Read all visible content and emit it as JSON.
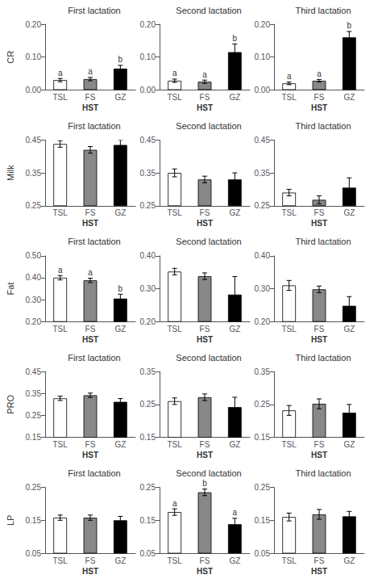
{
  "chart_data": [
    {
      "type": "bar",
      "title": "First lactation",
      "ylabel": "CR",
      "xlabel": "HST",
      "categories": [
        "TSL",
        "FS",
        "GZ"
      ],
      "values": [
        0.03,
        0.033,
        0.065
      ],
      "errors": [
        0.005,
        0.005,
        0.01
      ],
      "letters": [
        "a",
        "a",
        "b"
      ],
      "colors": [
        "white",
        "#888888",
        "black"
      ],
      "ylim": [
        0,
        0.2
      ],
      "yticks": [
        {
          "value": 0,
          "label": "0.00"
        },
        {
          "value": 0.1,
          "label": "0.10"
        },
        {
          "value": 0.2,
          "label": "0.20"
        }
      ],
      "grid": false
    },
    {
      "type": "bar",
      "title": "Second lactation",
      "xlabel": "HST",
      "categories": [
        "TSL",
        "FS",
        "GZ"
      ],
      "values": [
        0.028,
        0.025,
        0.115
      ],
      "errors": [
        0.005,
        0.005,
        0.025
      ],
      "letters": [
        "a",
        "a",
        "b"
      ],
      "colors": [
        "white",
        "#888888",
        "black"
      ],
      "ylim": [
        0,
        0.2
      ],
      "yticks": [
        {
          "value": 0,
          "label": "0.00"
        },
        {
          "value": 0.1,
          "label": "0.10"
        },
        {
          "value": 0.2,
          "label": "0.20"
        }
      ],
      "grid": false
    },
    {
      "type": "bar",
      "title": "Third lactation",
      "xlabel": "HST",
      "categories": [
        "TSL",
        "FS",
        "GZ"
      ],
      "values": [
        0.02,
        0.028,
        0.16
      ],
      "errors": [
        0.004,
        0.004,
        0.018
      ],
      "letters": [
        "a",
        "a",
        "b"
      ],
      "colors": [
        "white",
        "#888888",
        "black"
      ],
      "ylim": [
        0,
        0.2
      ],
      "yticks": [
        {
          "value": 0,
          "label": "0.00"
        },
        {
          "value": 0.1,
          "label": "0.10"
        },
        {
          "value": 0.2,
          "label": "0.20"
        }
      ],
      "grid": false
    },
    {
      "type": "bar",
      "title": "First lactation",
      "ylabel": "Milk",
      "xlabel": "HST",
      "categories": [
        "TSL",
        "FS",
        "GZ"
      ],
      "values": [
        0.438,
        0.42,
        0.435
      ],
      "errors": [
        0.01,
        0.01,
        0.015
      ],
      "colors": [
        "white",
        "#888888",
        "black"
      ],
      "ylim": [
        0.25,
        0.45
      ],
      "yticks": [
        0.25,
        0.35,
        0.45
      ],
      "grid": false
    },
    {
      "type": "bar",
      "title": "Second lactation",
      "xlabel": "HST",
      "categories": [
        "TSL",
        "FS",
        "GZ"
      ],
      "values": [
        0.35,
        0.33,
        0.33
      ],
      "errors": [
        0.012,
        0.01,
        0.02
      ],
      "colors": [
        "white",
        "#888888",
        "black"
      ],
      "ylim": [
        0.25,
        0.45
      ],
      "yticks": [
        0.25,
        0.35,
        0.45
      ],
      "grid": false
    },
    {
      "type": "bar",
      "title": "Third lactation",
      "xlabel": "HST",
      "categories": [
        "TSL",
        "FS",
        "GZ"
      ],
      "values": [
        0.29,
        0.268,
        0.305
      ],
      "errors": [
        0.01,
        0.012,
        0.03
      ],
      "colors": [
        "white",
        "#888888",
        "black"
      ],
      "ylim": [
        0.25,
        0.45
      ],
      "yticks": [
        0.25,
        0.35,
        0.45
      ],
      "grid": false
    },
    {
      "type": "bar",
      "title": "First lactation",
      "ylabel": "Fat",
      "xlabel": "HST",
      "categories": [
        "TSL",
        "FS",
        "GZ"
      ],
      "values": [
        0.4,
        0.388,
        0.305
      ],
      "errors": [
        0.01,
        0.01,
        0.02
      ],
      "letters": [
        "a",
        "a",
        "b"
      ],
      "colors": [
        "white",
        "#888888",
        "black"
      ],
      "ylim": [
        0.2,
        0.5
      ],
      "yticks": [
        {
          "value": 0.2,
          "label": "0.20"
        },
        {
          "value": 0.3,
          "label": "0.30"
        },
        {
          "value": 0.4,
          "label": "0.40"
        },
        {
          "value": 0.5,
          "label": "0.50"
        }
      ],
      "grid": false
    },
    {
      "type": "bar",
      "title": "Second lactation",
      "xlabel": "HST",
      "categories": [
        "TSL",
        "FS",
        "GZ"
      ],
      "values": [
        0.352,
        0.338,
        0.282
      ],
      "errors": [
        0.01,
        0.01,
        0.055
      ],
      "colors": [
        "white",
        "#888888",
        "black"
      ],
      "ylim": [
        0.2,
        0.4
      ],
      "yticks": [
        {
          "value": 0.2,
          "label": "0.20"
        },
        {
          "value": 0.3,
          "label": "0.30"
        },
        {
          "value": 0.4,
          "label": "0.40"
        }
      ],
      "grid": false
    },
    {
      "type": "bar",
      "title": "Third lactation",
      "xlabel": "HST",
      "categories": [
        "TSL",
        "FS",
        "GZ"
      ],
      "values": [
        0.31,
        0.298,
        0.248
      ],
      "errors": [
        0.015,
        0.01,
        0.028
      ],
      "colors": [
        "white",
        "#888888",
        "black"
      ],
      "ylim": [
        0.2,
        0.4
      ],
      "yticks": [
        {
          "value": 0.2,
          "label": "0.20"
        },
        {
          "value": 0.3,
          "label": "0.30"
        },
        {
          "value": 0.4,
          "label": "0.40"
        }
      ],
      "grid": false
    },
    {
      "type": "bar",
      "title": "First lactation",
      "ylabel": "PRO",
      "xlabel": "HST",
      "categories": [
        "TSL",
        "FS",
        "GZ"
      ],
      "values": [
        0.328,
        0.342,
        0.312
      ],
      "errors": [
        0.01,
        0.01,
        0.015
      ],
      "colors": [
        "white",
        "#888888",
        "black"
      ],
      "ylim": [
        0.15,
        0.45
      ],
      "yticks": [
        0.15,
        0.25,
        0.35,
        0.45
      ],
      "grid": false
    },
    {
      "type": "bar",
      "title": "Second lactation",
      "xlabel": "HST",
      "categories": [
        "TSL",
        "FS",
        "GZ"
      ],
      "values": [
        0.26,
        0.272,
        0.242
      ],
      "errors": [
        0.01,
        0.01,
        0.03
      ],
      "colors": [
        "white",
        "#888888",
        "black"
      ],
      "ylim": [
        0.15,
        0.35
      ],
      "yticks": [
        0.15,
        0.25,
        0.35
      ],
      "grid": false
    },
    {
      "type": "bar",
      "title": "Third lactation",
      "xlabel": "HST",
      "categories": [
        "TSL",
        "FS",
        "GZ"
      ],
      "values": [
        0.232,
        0.252,
        0.225
      ],
      "errors": [
        0.015,
        0.015,
        0.025
      ],
      "colors": [
        "white",
        "#888888",
        "black"
      ],
      "ylim": [
        0.15,
        0.35
      ],
      "yticks": [
        0.15,
        0.25,
        0.35
      ],
      "grid": false
    },
    {
      "type": "bar",
      "title": "First lactation",
      "ylabel": "LP",
      "xlabel": "HST",
      "categories": [
        "TSL",
        "FS",
        "GZ"
      ],
      "values": [
        0.158,
        0.158,
        0.15
      ],
      "errors": [
        0.008,
        0.008,
        0.012
      ],
      "colors": [
        "white",
        "#888888",
        "black"
      ],
      "ylim": [
        0.05,
        0.25
      ],
      "yticks": [
        0.05,
        0.15,
        0.25
      ],
      "grid": false
    },
    {
      "type": "bar",
      "title": "Second lactation",
      "xlabel": "HST",
      "categories": [
        "TSL",
        "FS",
        "GZ"
      ],
      "values": [
        0.175,
        0.235,
        0.138
      ],
      "errors": [
        0.01,
        0.01,
        0.018
      ],
      "letters": [
        "a",
        "b",
        "a"
      ],
      "colors": [
        "white",
        "#888888",
        "black"
      ],
      "ylim": [
        0.05,
        0.25
      ],
      "yticks": [
        0.05,
        0.15,
        0.25
      ],
      "grid": false
    },
    {
      "type": "bar",
      "title": "Third lactation",
      "xlabel": "HST",
      "categories": [
        "TSL",
        "FS",
        "GZ"
      ],
      "values": [
        0.16,
        0.168,
        0.162
      ],
      "errors": [
        0.012,
        0.015,
        0.015
      ],
      "colors": [
        "white",
        "#888888",
        "black"
      ],
      "ylim": [
        0.05,
        0.25
      ],
      "yticks": [
        0.05,
        0.15,
        0.25
      ],
      "grid": false
    }
  ]
}
